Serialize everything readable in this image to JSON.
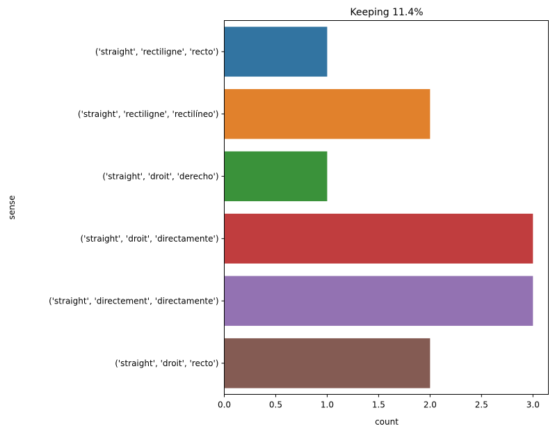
{
  "chart_data": {
    "type": "bar",
    "orientation": "horizontal",
    "title": "Keeping 11.4%",
    "xlabel": "count",
    "ylabel": "sense",
    "xlim": [
      0,
      3.15
    ],
    "xticks": [
      "0.0",
      "0.5",
      "1.0",
      "1.5",
      "2.0",
      "2.5",
      "3.0"
    ],
    "xtick_values": [
      0,
      0.5,
      1.0,
      1.5,
      2.0,
      2.5,
      3.0
    ],
    "grid": false,
    "legend": "none",
    "categories": [
      "('straight', 'rectiligne', 'recto')",
      "('straight', 'rectiligne', 'rectilíneo')",
      "('straight', 'droit', 'derecho')",
      "('straight', 'droit', 'directamente')",
      "('straight', 'directement', 'directamente')",
      "('straight', 'droit', 'recto')"
    ],
    "values": [
      1,
      2,
      1,
      3,
      3,
      2
    ],
    "colors": [
      "#3274a1",
      "#e1812c",
      "#3a923a",
      "#c03d3e",
      "#9372b2",
      "#845b53"
    ]
  }
}
